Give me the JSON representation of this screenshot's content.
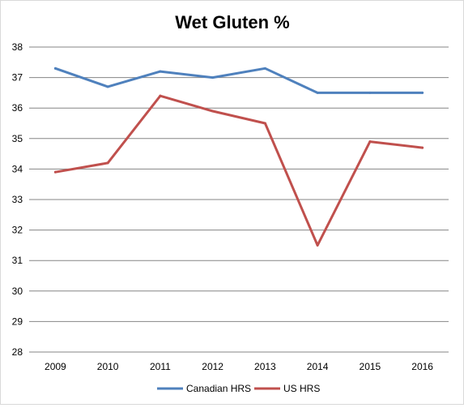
{
  "chart_data": {
    "type": "line",
    "title": "Wet Gluten %",
    "xlabel": "",
    "ylabel": "",
    "categories": [
      "2009",
      "2010",
      "2011",
      "2012",
      "2013",
      "2014",
      "2015",
      "2016"
    ],
    "ylim": [
      28,
      38
    ],
    "yticks": [
      "28",
      "29",
      "30",
      "31",
      "32",
      "33",
      "34",
      "35",
      "36",
      "37",
      "38"
    ],
    "grid": true,
    "legend_position": "bottom",
    "series": [
      {
        "name": "Canadian HRS",
        "color": "#4f81bd",
        "values": [
          37.3,
          36.7,
          37.2,
          37.0,
          37.3,
          36.5,
          36.5,
          36.5
        ]
      },
      {
        "name": "US HRS",
        "color": "#c0504d",
        "values": [
          33.9,
          34.2,
          36.4,
          35.9,
          35.5,
          31.5,
          34.9,
          34.7
        ]
      }
    ]
  }
}
